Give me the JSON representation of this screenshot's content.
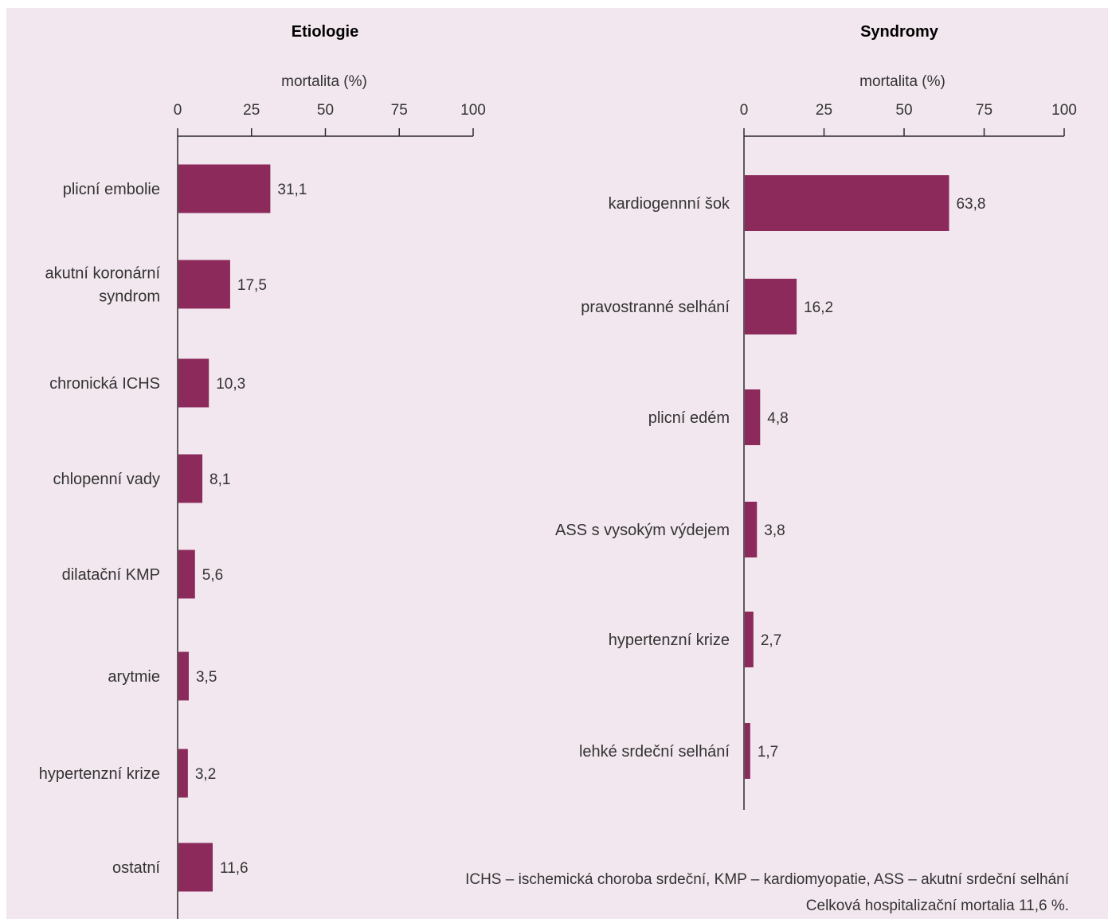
{
  "chart_data": [
    {
      "type": "bar",
      "orientation": "horizontal",
      "title": "Etiologie",
      "xlabel": "mortalita (%)",
      "ylabel": "",
      "xlim": [
        0,
        100
      ],
      "ticks": [
        "0",
        "25",
        "50",
        "75",
        "100"
      ],
      "categories": [
        "plicní embolie",
        "akutní koronární syndrom",
        "chronická ICHS",
        "chlopenní vady",
        "dilatační KMP",
        "arytmie",
        "hypertenzní krize",
        "ostatní"
      ],
      "category_lines": [
        [
          "plicní embolie"
        ],
        [
          "akutní koronární",
          "syndrom"
        ],
        [
          "chronická ICHS"
        ],
        [
          "chlopenní vady"
        ],
        [
          "dilatační KMP"
        ],
        [
          "arytmie"
        ],
        [
          "hypertenzní krize"
        ],
        [
          "ostatní"
        ]
      ],
      "values": [
        31.1,
        17.5,
        10.3,
        8.1,
        5.6,
        3.5,
        3.2,
        11.6
      ],
      "value_labels": [
        "31,1",
        "17,5",
        "10,3",
        "8,1",
        "5,6",
        "3,5",
        "3,2",
        "11,6"
      ]
    },
    {
      "type": "bar",
      "orientation": "horizontal",
      "title": "Syndromy",
      "xlabel": "mortalita (%)",
      "ylabel": "",
      "xlim": [
        0,
        100
      ],
      "ticks": [
        "0",
        "25",
        "50",
        "75",
        "100"
      ],
      "categories": [
        "kardiogennní šok",
        "pravostranné selhání",
        "plicní edém",
        "ASS s vysokým výdejem",
        "hypertenzní krize",
        "lehké srdeční selhání"
      ],
      "category_lines": [
        [
          "kardiogennní šok"
        ],
        [
          "pravostranné selhání"
        ],
        [
          "plicní edém"
        ],
        [
          "ASS s vysokým výdejem"
        ],
        [
          "hypertenzní krize"
        ],
        [
          "lehké srdeční selhání"
        ]
      ],
      "values": [
        63.8,
        16.2,
        4.8,
        3.8,
        2.7,
        1.7
      ],
      "value_labels": [
        "63,8",
        "16,2",
        "4,8",
        "3,8",
        "2,7",
        "1,7"
      ]
    }
  ],
  "colors": {
    "background": "#f2e7ee",
    "bar": "#8c2a5c",
    "axis": "#2a2a2a",
    "text": "#333333"
  },
  "notes": {
    "line1": "ICHS – ischemická choroba srdeční, KMP – kardiomyopatie, ASS – akutní srdeční selhání",
    "line2": "Celková hospitalizační mortalia 11,6 %."
  }
}
